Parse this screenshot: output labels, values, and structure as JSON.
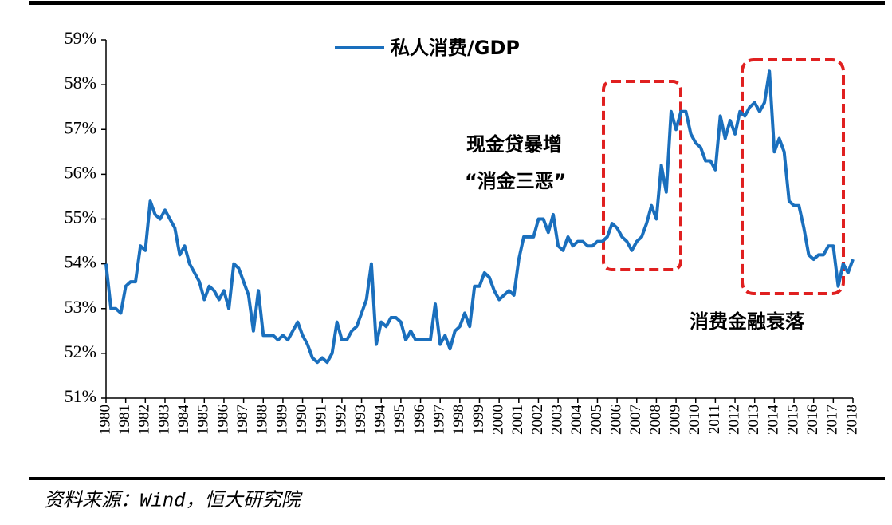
{
  "chart_data": {
    "type": "line",
    "legend": "top",
    "annotations": [
      "现金贷暴增",
      "“消金三恶”",
      "消费金融衰落"
    ],
    "source": "资料来源：Wind，恒大研究院",
    "categories": [
      "1980",
      null,
      null,
      null,
      "1981",
      null,
      null,
      null,
      "1982",
      null,
      null,
      null,
      "1983",
      null,
      null,
      null,
      "1984",
      null,
      null,
      null,
      "1985",
      null,
      null,
      null,
      "1986",
      null,
      null,
      null,
      "1987",
      null,
      null,
      null,
      "1988",
      null,
      null,
      null,
      "1989",
      null,
      null,
      null,
      "1990",
      null,
      null,
      null,
      "1991",
      null,
      null,
      null,
      "1992",
      null,
      null,
      null,
      "1993",
      null,
      null,
      null,
      "1994",
      null,
      null,
      null,
      "1995",
      null,
      null,
      null,
      "1996",
      null,
      null,
      null,
      "1997",
      null,
      null,
      null,
      "1998",
      null,
      null,
      null,
      "1999",
      null,
      null,
      null,
      "2000",
      null,
      null,
      null,
      "2001",
      null,
      null,
      null,
      "2002",
      null,
      null,
      null,
      "2003",
      null,
      null,
      null,
      "2004",
      null,
      null,
      null,
      "2005",
      null,
      null,
      null,
      "2006",
      null,
      null,
      null,
      "2007",
      null,
      null,
      null,
      "2008",
      null,
      null,
      null,
      "2009",
      null,
      null,
      null,
      "2010",
      null,
      null,
      null,
      "2011",
      null,
      null,
      null,
      "2012",
      null,
      null,
      null,
      "2013",
      null,
      null,
      null,
      "2014",
      null,
      null,
      null,
      "2015",
      null,
      null,
      null,
      "2016",
      null,
      null,
      null,
      "2017",
      null,
      null,
      null,
      "2018"
    ],
    "series": [
      {
        "name": "私人消费/GDP",
        "color": "#1a6fbd",
        "values": [
          54.0,
          53.0,
          53.0,
          52.9,
          53.5,
          53.6,
          53.6,
          54.4,
          54.3,
          55.4,
          55.1,
          55.0,
          55.2,
          55.0,
          54.8,
          54.2,
          54.4,
          54.0,
          53.8,
          53.6,
          53.2,
          53.5,
          53.4,
          53.2,
          53.4,
          53.0,
          54.0,
          53.9,
          53.6,
          53.3,
          52.5,
          53.4,
          52.4,
          52.4,
          52.4,
          52.3,
          52.4,
          52.3,
          52.5,
          52.7,
          52.4,
          52.2,
          51.9,
          51.8,
          51.9,
          51.8,
          52.0,
          52.7,
          52.3,
          52.3,
          52.5,
          52.6,
          52.9,
          53.2,
          54.0,
          52.2,
          52.7,
          52.6,
          52.8,
          52.8,
          52.7,
          52.3,
          52.5,
          52.3,
          52.3,
          52.3,
          52.3,
          53.1,
          52.2,
          52.4,
          52.1,
          52.5,
          52.6,
          52.9,
          52.6,
          53.5,
          53.5,
          53.8,
          53.7,
          53.4,
          53.2,
          53.3,
          53.4,
          53.3,
          54.1,
          54.6,
          54.6,
          54.6,
          55.0,
          55.0,
          54.7,
          55.1,
          54.4,
          54.3,
          54.6,
          54.4,
          54.5,
          54.5,
          54.4,
          54.4,
          54.5,
          54.5,
          54.6,
          54.9,
          54.8,
          54.6,
          54.5,
          54.3,
          54.5,
          54.6,
          54.9,
          55.3,
          55.0,
          56.2,
          55.6,
          57.4,
          57.0,
          57.4,
          57.4,
          56.9,
          56.7,
          56.6,
          56.3,
          56.3,
          56.1,
          57.3,
          56.8,
          57.2,
          56.9,
          57.4,
          57.3,
          57.5,
          57.6,
          57.4,
          57.6,
          58.3,
          56.5,
          56.8,
          56.5,
          55.4,
          55.3,
          55.3,
          54.8,
          54.2,
          54.1,
          54.2,
          54.2,
          54.4,
          54.4,
          53.5,
          54.0,
          53.8,
          54.1
        ]
      }
    ],
    "ylim": [
      51,
      59
    ],
    "yticks": [
      {
        "value": 51,
        "label": "51%"
      },
      {
        "value": 52,
        "label": "52%"
      },
      {
        "value": 53,
        "label": "53%"
      },
      {
        "value": 54,
        "label": "54%"
      },
      {
        "value": 55,
        "label": "55%"
      },
      {
        "value": 56,
        "label": "56%"
      },
      {
        "value": 57,
        "label": "57%"
      },
      {
        "value": 58,
        "label": "58%"
      },
      {
        "value": 59,
        "label": "59%"
      }
    ]
  }
}
